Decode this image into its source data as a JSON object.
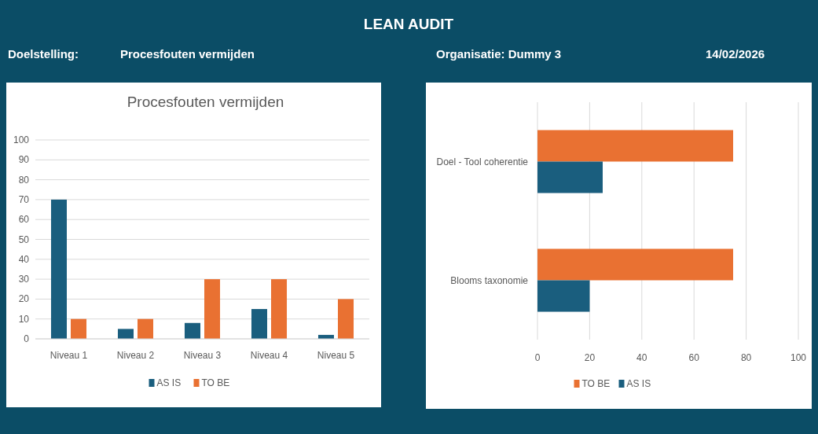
{
  "chart_data": [
    {
      "type": "other",
      "title": "LEAN AUDIT",
      "annotations": [
        "Doelstelling:",
        "Procesfouten vermijden",
        "Organisatie:  Dummy 3",
        "14/02/2026"
      ]
    },
    {
      "type": "bar",
      "title": "Procesfouten vermijden",
      "categories": [
        "Niveau 1",
        "Niveau 2",
        "Niveau 3",
        "Niveau 4",
        "Niveau 5"
      ],
      "series": [
        {
          "name": "AS IS",
          "color": "#1a5e7e",
          "values": [
            70,
            5,
            8,
            15,
            2
          ]
        },
        {
          "name": "TO BE",
          "color": "#e97132",
          "values": [
            10,
            10,
            30,
            30,
            20
          ]
        }
      ],
      "ylim": [
        0,
        100
      ],
      "yticks": [
        0,
        10,
        20,
        30,
        40,
        50,
        60,
        70,
        80,
        90,
        100
      ],
      "grid": "y",
      "legend": "bottom"
    },
    {
      "type": "bar",
      "orientation": "horizontal",
      "categories": [
        "Doel - Tool coherentie",
        "Blooms taxonomie"
      ],
      "series": [
        {
          "name": "TO BE",
          "color": "#e97132",
          "values": [
            75,
            75
          ]
        },
        {
          "name": "AS IS",
          "color": "#1a5e7e",
          "values": [
            25,
            20
          ]
        }
      ],
      "xlim": [
        0,
        100
      ],
      "xticks": [
        0,
        20,
        40,
        60,
        80,
        100
      ],
      "grid": "x",
      "legend": "bottom"
    }
  ]
}
